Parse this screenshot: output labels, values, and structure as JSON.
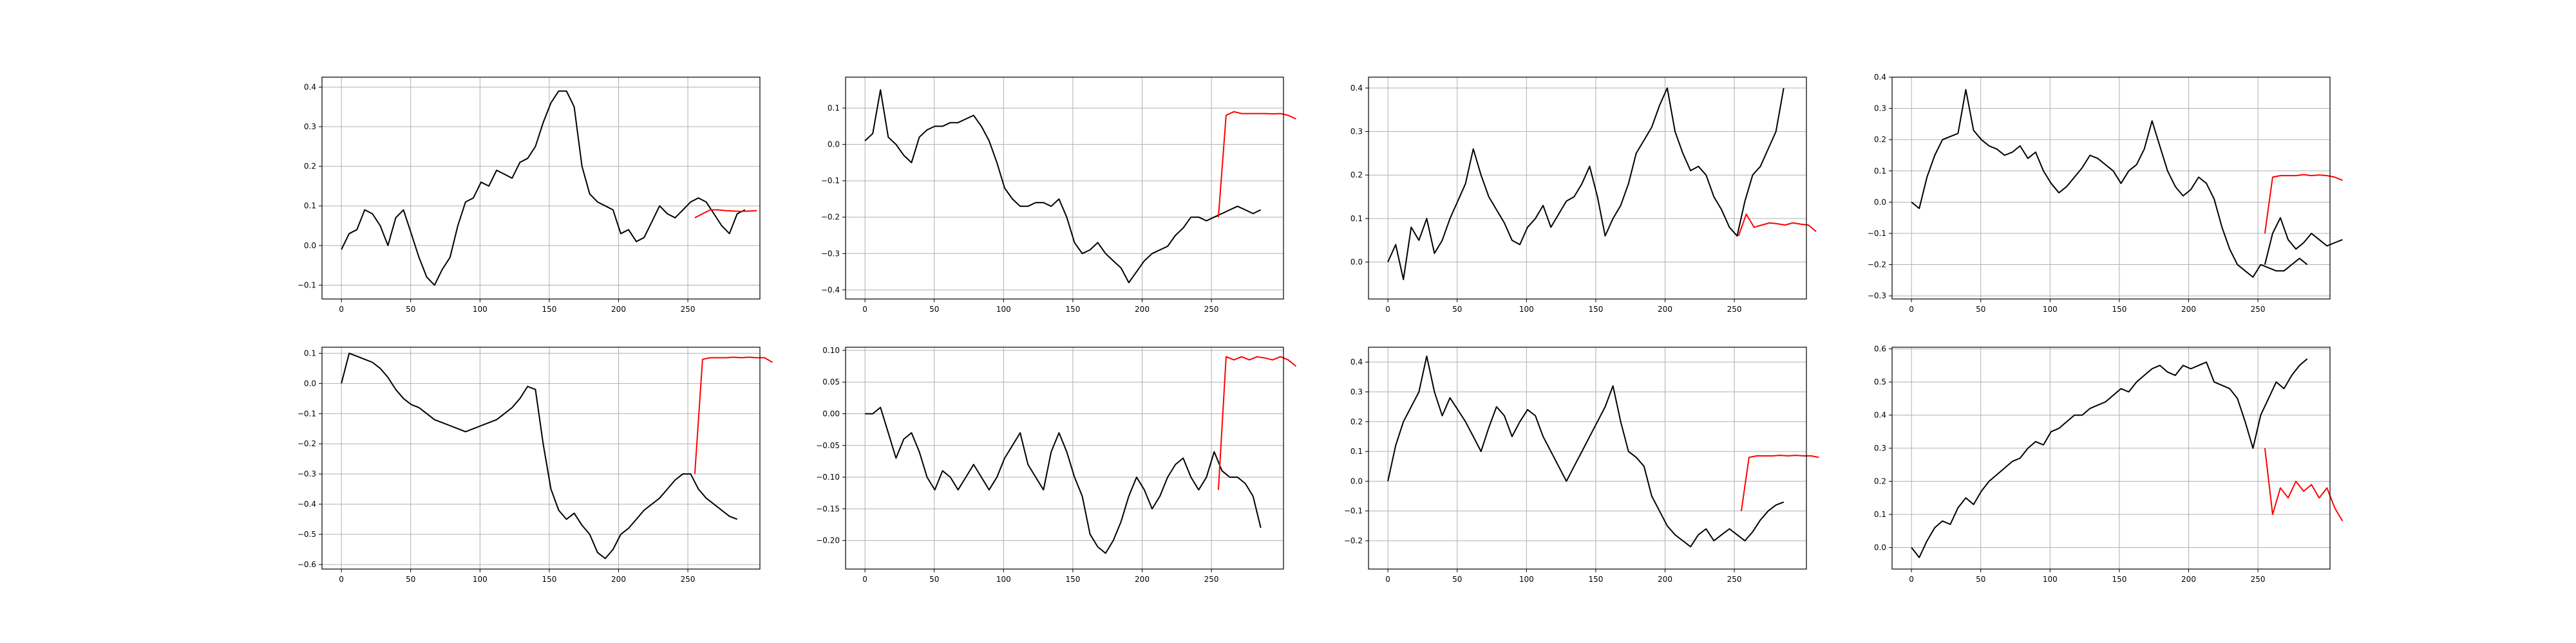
{
  "figure": {
    "background": "#ffffff",
    "grid_color": "#b0b0b0",
    "axes_color": "#000000"
  },
  "chart_data": [
    {
      "type": "line",
      "grid": true,
      "xlim": [
        -14,
        302
      ],
      "ylim": [
        -0.135,
        0.425
      ],
      "xticks": [
        0,
        50,
        100,
        150,
        200,
        250
      ],
      "yticks": [
        -0.1,
        0.0,
        0.1,
        0.2,
        0.3,
        0.4
      ],
      "ytick_labels": [
        "−0.1",
        "0.0",
        "0.1",
        "0.2",
        "0.3",
        "0.4"
      ],
      "series": [
        {
          "color": "#000000",
          "x_start": 0,
          "values": [
            -0.01,
            0.03,
            0.04,
            0.09,
            0.08,
            0.05,
            0.0,
            0.07,
            0.09,
            0.03,
            -0.03,
            -0.08,
            -0.1,
            -0.06,
            -0.03,
            0.05,
            0.11,
            0.12,
            0.16,
            0.15,
            0.19,
            0.18,
            0.17,
            0.21,
            0.22,
            0.25,
            0.31,
            0.36,
            0.39,
            0.39,
            0.35,
            0.2,
            0.13,
            0.11,
            0.1,
            0.09,
            0.03,
            0.04,
            0.01,
            0.02,
            0.06,
            0.1,
            0.08,
            0.07,
            0.09,
            0.11,
            0.12,
            0.11,
            0.08,
            0.05,
            0.03,
            0.08,
            0.09
          ]
        },
        {
          "color": "#ff0000",
          "x_start": 255,
          "values": [
            0.07,
            0.08,
            0.09,
            0.09,
            0.088,
            0.087,
            0.086,
            0.087,
            0.088
          ]
        }
      ]
    },
    {
      "type": "line",
      "grid": true,
      "xlim": [
        -14,
        302
      ],
      "ylim": [
        -0.425,
        0.185
      ],
      "xticks": [
        0,
        50,
        100,
        150,
        200,
        250
      ],
      "yticks": [
        -0.4,
        -0.3,
        -0.2,
        -0.1,
        0.0,
        0.1
      ],
      "ytick_labels": [
        "−0.4",
        "−0.3",
        "−0.2",
        "−0.1",
        "0.0",
        "0.1"
      ],
      "series": [
        {
          "color": "#000000",
          "x_start": 0,
          "values": [
            0.01,
            0.03,
            0.15,
            0.02,
            0.0,
            -0.03,
            -0.05,
            0.02,
            0.04,
            0.05,
            0.05,
            0.06,
            0.06,
            0.07,
            0.08,
            0.05,
            0.01,
            -0.05,
            -0.12,
            -0.15,
            -0.17,
            -0.17,
            -0.16,
            -0.16,
            -0.17,
            -0.15,
            -0.2,
            -0.27,
            -0.3,
            -0.29,
            -0.27,
            -0.3,
            -0.32,
            -0.34,
            -0.38,
            -0.35,
            -0.32,
            -0.3,
            -0.29,
            -0.28,
            -0.25,
            -0.23,
            -0.2,
            -0.2,
            -0.21,
            -0.2,
            -0.19,
            -0.18,
            -0.17,
            -0.18,
            -0.19,
            -0.18
          ]
        },
        {
          "color": "#ff0000",
          "x_start": 255,
          "values": [
            -0.2,
            0.08,
            0.09,
            0.085,
            0.085,
            0.085,
            0.085,
            0.084,
            0.085,
            0.08,
            0.07
          ]
        }
      ]
    },
    {
      "type": "line",
      "grid": true,
      "xlim": [
        -14,
        302
      ],
      "ylim": [
        -0.085,
        0.425
      ],
      "xticks": [
        0,
        50,
        100,
        150,
        200,
        250
      ],
      "yticks": [
        0.0,
        0.1,
        0.2,
        0.3,
        0.4
      ],
      "ytick_labels": [
        "0.0",
        "0.1",
        "0.2",
        "0.3",
        "0.4"
      ],
      "series": [
        {
          "color": "#000000",
          "x_start": 0,
          "values": [
            0.0,
            0.04,
            -0.04,
            0.08,
            0.05,
            0.1,
            0.02,
            0.05,
            0.1,
            0.14,
            0.18,
            0.26,
            0.2,
            0.15,
            0.12,
            0.09,
            0.05,
            0.04,
            0.08,
            0.1,
            0.13,
            0.08,
            0.11,
            0.14,
            0.15,
            0.18,
            0.22,
            0.15,
            0.06,
            0.1,
            0.13,
            0.18,
            0.25,
            0.28,
            0.31,
            0.36,
            0.4,
            0.3,
            0.25,
            0.21,
            0.22,
            0.2,
            0.15,
            0.12,
            0.08,
            0.06,
            0.14,
            0.2,
            0.22,
            0.26,
            0.3,
            0.4
          ]
        },
        {
          "color": "#ff0000",
          "x_start": 253,
          "values": [
            0.06,
            0.11,
            0.08,
            0.085,
            0.09,
            0.088,
            0.085,
            0.09,
            0.087,
            0.085,
            0.07
          ]
        }
      ]
    },
    {
      "type": "line",
      "grid": true,
      "xlim": [
        -14,
        302
      ],
      "ylim": [
        -0.31,
        0.4
      ],
      "xticks": [
        0,
        50,
        100,
        150,
        200,
        250
      ],
      "yticks": [
        -0.3,
        -0.2,
        -0.1,
        0.0,
        0.1,
        0.2,
        0.3,
        0.4
      ],
      "ytick_labels": [
        "−0.3",
        "−0.2",
        "−0.1",
        "0.0",
        "0.1",
        "0.2",
        "0.3",
        "0.4"
      ],
      "series": [
        {
          "color": "#000000",
          "x_start": 0,
          "values": [
            0.0,
            -0.02,
            0.08,
            0.15,
            0.2,
            0.21,
            0.22,
            0.36,
            0.23,
            0.2,
            0.18,
            0.17,
            0.15,
            0.16,
            0.18,
            0.14,
            0.16,
            0.1,
            0.06,
            0.03,
            0.05,
            0.08,
            0.11,
            0.15,
            0.14,
            0.12,
            0.1,
            0.06,
            0.1,
            0.12,
            0.17,
            0.26,
            0.18,
            0.1,
            0.05,
            0.02,
            0.04,
            0.08,
            0.06,
            0.01,
            -0.08,
            -0.15,
            -0.2,
            -0.22,
            -0.24,
            -0.2,
            -0.21,
            -0.22,
            -0.22,
            -0.2,
            -0.18,
            -0.2
          ]
        },
        {
          "color": "#ff0000",
          "x_start": 255,
          "values": [
            -0.1,
            0.08,
            0.085,
            0.085,
            0.085,
            0.088,
            0.085,
            0.087,
            0.085,
            0.08,
            0.07
          ]
        },
        {
          "color": "#000000",
          "x_start": 255,
          "values": [
            -0.2,
            -0.1,
            -0.05,
            -0.12,
            -0.15,
            -0.13,
            -0.1,
            -0.12,
            -0.14,
            -0.13,
            -0.12
          ]
        }
      ]
    },
    {
      "type": "line",
      "grid": true,
      "xlim": [
        -14,
        302
      ],
      "ylim": [
        -0.615,
        0.12
      ],
      "xticks": [
        0,
        50,
        100,
        150,
        200,
        250
      ],
      "yticks": [
        -0.6,
        -0.5,
        -0.4,
        -0.3,
        -0.2,
        -0.1,
        0.0,
        0.1
      ],
      "ytick_labels": [
        "−0.6",
        "−0.5",
        "−0.4",
        "−0.3",
        "−0.2",
        "−0.1",
        "0.0",
        "0.1"
      ],
      "series": [
        {
          "color": "#000000",
          "x_start": 0,
          "values": [
            0.0,
            0.1,
            0.09,
            0.08,
            0.07,
            0.05,
            0.02,
            -0.02,
            -0.05,
            -0.07,
            -0.08,
            -0.1,
            -0.12,
            -0.13,
            -0.14,
            -0.15,
            -0.16,
            -0.15,
            -0.14,
            -0.13,
            -0.12,
            -0.1,
            -0.08,
            -0.05,
            -0.01,
            -0.02,
            -0.2,
            -0.35,
            -0.42,
            -0.45,
            -0.43,
            -0.47,
            -0.5,
            -0.56,
            -0.58,
            -0.55,
            -0.5,
            -0.48,
            -0.45,
            -0.42,
            -0.4,
            -0.38,
            -0.35,
            -0.32,
            -0.3,
            -0.3,
            -0.35,
            -0.38,
            -0.4,
            -0.42,
            -0.44,
            -0.45
          ]
        },
        {
          "color": "#ff0000",
          "x_start": 255,
          "values": [
            -0.3,
            0.08,
            0.085,
            0.085,
            0.085,
            0.087,
            0.085,
            0.087,
            0.085,
            0.085,
            0.07
          ]
        }
      ]
    },
    {
      "type": "line",
      "grid": true,
      "xlim": [
        -14,
        302
      ],
      "ylim": [
        -0.245,
        0.105
      ],
      "xticks": [
        0,
        50,
        100,
        150,
        200,
        250
      ],
      "yticks": [
        -0.2,
        -0.15,
        -0.1,
        -0.05,
        0.0,
        0.05,
        0.1
      ],
      "ytick_labels": [
        "−0.20",
        "−0.15",
        "−0.10",
        "−0.05",
        "0.00",
        "0.05",
        "0.10"
      ],
      "series": [
        {
          "color": "#000000",
          "x_start": 0,
          "values": [
            0.0,
            0.0,
            0.01,
            -0.03,
            -0.07,
            -0.04,
            -0.03,
            -0.06,
            -0.1,
            -0.12,
            -0.09,
            -0.1,
            -0.12,
            -0.1,
            -0.08,
            -0.1,
            -0.12,
            -0.1,
            -0.07,
            -0.05,
            -0.03,
            -0.08,
            -0.1,
            -0.12,
            -0.06,
            -0.03,
            -0.06,
            -0.1,
            -0.13,
            -0.19,
            -0.21,
            -0.22,
            -0.2,
            -0.17,
            -0.13,
            -0.1,
            -0.12,
            -0.15,
            -0.13,
            -0.1,
            -0.08,
            -0.07,
            -0.1,
            -0.12,
            -0.1,
            -0.06,
            -0.09,
            -0.1,
            -0.1,
            -0.11,
            -0.13,
            -0.18
          ]
        },
        {
          "color": "#ff0000",
          "x_start": 255,
          "values": [
            -0.12,
            0.09,
            0.085,
            0.09,
            0.085,
            0.09,
            0.088,
            0.085,
            0.09,
            0.085,
            0.075
          ]
        }
      ]
    },
    {
      "type": "line",
      "grid": true,
      "xlim": [
        -14,
        302
      ],
      "ylim": [
        -0.295,
        0.45
      ],
      "xticks": [
        0,
        50,
        100,
        150,
        200,
        250
      ],
      "yticks": [
        -0.2,
        -0.1,
        0.0,
        0.1,
        0.2,
        0.3,
        0.4
      ],
      "ytick_labels": [
        "−0.2",
        "−0.1",
        "0.0",
        "0.1",
        "0.2",
        "0.3",
        "0.4"
      ],
      "series": [
        {
          "color": "#000000",
          "x_start": 0,
          "values": [
            0.0,
            0.12,
            0.2,
            0.25,
            0.3,
            0.42,
            0.3,
            0.22,
            0.28,
            0.24,
            0.2,
            0.15,
            0.1,
            0.18,
            0.25,
            0.22,
            0.15,
            0.2,
            0.24,
            0.22,
            0.15,
            0.1,
            0.05,
            0.0,
            0.05,
            0.1,
            0.15,
            0.2,
            0.25,
            0.32,
            0.2,
            0.1,
            0.08,
            0.05,
            -0.05,
            -0.1,
            -0.15,
            -0.18,
            -0.2,
            -0.22,
            -0.18,
            -0.16,
            -0.2,
            -0.18,
            -0.16,
            -0.18,
            -0.2,
            -0.17,
            -0.13,
            -0.1,
            -0.08,
            -0.07
          ]
        },
        {
          "color": "#ff0000",
          "x_start": 255,
          "values": [
            -0.1,
            0.08,
            0.085,
            0.085,
            0.085,
            0.087,
            0.085,
            0.087,
            0.085,
            0.085,
            0.08
          ]
        }
      ]
    },
    {
      "type": "line",
      "grid": true,
      "xlim": [
        -14,
        302
      ],
      "ylim": [
        -0.065,
        0.605
      ],
      "xticks": [
        0,
        50,
        100,
        150,
        200,
        250
      ],
      "yticks": [
        0.0,
        0.1,
        0.2,
        0.3,
        0.4,
        0.5,
        0.6
      ],
      "ytick_labels": [
        "0.0",
        "0.1",
        "0.2",
        "0.3",
        "0.4",
        "0.5",
        "0.6"
      ],
      "series": [
        {
          "color": "#000000",
          "x_start": 0,
          "values": [
            0.0,
            -0.03,
            0.02,
            0.06,
            0.08,
            0.07,
            0.12,
            0.15,
            0.13,
            0.17,
            0.2,
            0.22,
            0.24,
            0.26,
            0.27,
            0.3,
            0.32,
            0.31,
            0.35,
            0.36,
            0.38,
            0.4,
            0.4,
            0.42,
            0.43,
            0.44,
            0.46,
            0.48,
            0.47,
            0.5,
            0.52,
            0.54,
            0.55,
            0.53,
            0.52,
            0.55,
            0.54,
            0.55,
            0.56,
            0.5,
            0.49,
            0.48,
            0.45,
            0.38,
            0.3,
            0.4,
            0.45,
            0.5,
            0.48,
            0.52,
            0.55,
            0.57
          ]
        },
        {
          "color": "#ff0000",
          "x_start": 255,
          "values": [
            0.3,
            0.1,
            0.18,
            0.15,
            0.2,
            0.17,
            0.19,
            0.15,
            0.18,
            0.12,
            0.08
          ]
        }
      ]
    }
  ]
}
